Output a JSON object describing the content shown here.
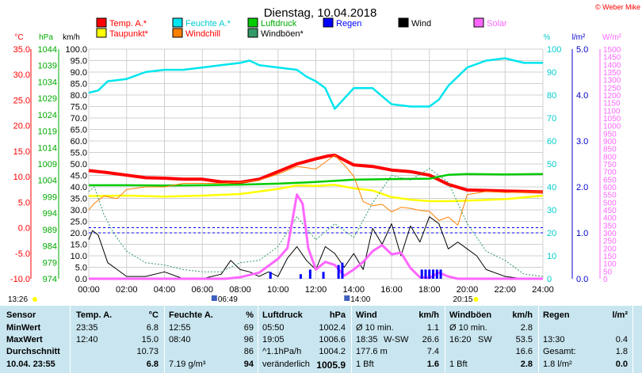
{
  "chart_data": {
    "type": "line",
    "title": "Dienstag, 10.04.2018",
    "copyright": "© Weber Mike",
    "legend": [
      {
        "label": "Temp. A.*",
        "color": "#ff0000"
      },
      {
        "label": "Feuchte A.*",
        "color": "#00e5ee"
      },
      {
        "label": "Luftdruck",
        "color": "#00cc00"
      },
      {
        "label": "Regen",
        "color": "#0000ff"
      },
      {
        "label": "Wind",
        "color": "#000000"
      },
      {
        "label": "Solar",
        "color": "#ff66ff"
      },
      {
        "label": "Taupunkt*",
        "color": "#ffff00"
      },
      {
        "label": "Windchill",
        "color": "#ff8000"
      },
      {
        "label": "Windböen*",
        "color": "#339966"
      }
    ],
    "axes": {
      "temp": {
        "label": "°C",
        "range": [
          -10,
          35
        ],
        "ticks": [
          "35.0",
          "30.0",
          "25.0",
          "20.0",
          "15.0",
          "10.0",
          "5.0",
          "0.0",
          "-5.0",
          "-10.0"
        ],
        "color": "#ff0000"
      },
      "pressure": {
        "label": "hPa",
        "range": [
          974,
          1044
        ],
        "ticks": [
          "1044",
          "1039",
          "1034",
          "1029",
          "1024",
          "1019",
          "1014",
          "1009",
          "1004",
          "999",
          "994",
          "989",
          "984",
          "979",
          "974"
        ],
        "color": "#00aa00"
      },
      "wind": {
        "label": "km/h",
        "range": [
          0,
          100
        ],
        "ticks": [
          "100.0",
          "95.0",
          "90.0",
          "85.0",
          "80.0",
          "75.0",
          "70.0",
          "65.0",
          "60.0",
          "55.0",
          "50.0",
          "45.0",
          "40.0",
          "35.0",
          "30.0",
          "25.0",
          "20.0",
          "15.0",
          "10.0",
          "5.0",
          "0.0"
        ],
        "color": "#000000"
      },
      "humidity": {
        "label": "%",
        "range": [
          0,
          100
        ],
        "ticks": [
          "100",
          "90",
          "80",
          "70",
          "60",
          "50",
          "40",
          "30",
          "20",
          "10",
          "0"
        ],
        "color": "#00cccc"
      },
      "rain": {
        "label": "l/m²",
        "range": [
          0,
          5
        ],
        "ticks": [
          "5.0",
          "4.0",
          "3.0",
          "2.0",
          "1.0",
          "0.0"
        ],
        "color": "#0000cc"
      },
      "solar": {
        "label": "W/m²",
        "range": [
          0,
          1500
        ],
        "ticks": [
          "1500",
          "1450",
          "1400",
          "1350",
          "1300",
          "1250",
          "1200",
          "1150",
          "1100",
          "1050",
          "1000",
          "950",
          "900",
          "850",
          "800",
          "750",
          "700",
          "650",
          "600",
          "550",
          "500",
          "450",
          "400",
          "350",
          "300",
          "250",
          "200",
          "150",
          "100",
          "50",
          "0"
        ],
        "color": "#ff66ff"
      },
      "x": {
        "range": [
          0,
          24
        ],
        "ticks": [
          "00:00",
          "02:00",
          "04:00",
          "06:00",
          "08:00",
          "10:00",
          "12:00",
          "14:00",
          "16:00",
          "18:00",
          "20:00",
          "22:00",
          "24:00"
        ]
      }
    },
    "series": [
      {
        "name": "Temp. A.*",
        "axis": "temp",
        "color": "#ff0000",
        "x": [
          0,
          1,
          2,
          3,
          4,
          5,
          6,
          7,
          8,
          9,
          10,
          11,
          12,
          12.7,
          13,
          14,
          15,
          16,
          17,
          18,
          19,
          20,
          21,
          22,
          23,
          24
        ],
        "values": [
          11.2,
          10.8,
          10.3,
          9.8,
          9.7,
          9.5,
          9.5,
          9.0,
          8.9,
          9.5,
          11.0,
          12.5,
          13.5,
          14.1,
          14.2,
          12.3,
          12.0,
          11.3,
          11.0,
          10.3,
          8.5,
          7.4,
          7.3,
          7.2,
          7.1,
          7.0
        ]
      },
      {
        "name": "Feuchte A.*",
        "axis": "humidity",
        "color": "#00e5ee",
        "x": [
          0,
          0.5,
          1,
          2,
          3,
          4,
          5,
          6,
          7,
          8,
          8.5,
          9,
          10,
          11,
          11.5,
          12,
          12.5,
          13,
          14,
          15,
          16,
          17,
          18,
          18.5,
          19,
          20,
          21,
          22,
          23,
          24
        ],
        "values": [
          81,
          82,
          86,
          87,
          90,
          91,
          91,
          92,
          93,
          94,
          95,
          93,
          92,
          91,
          88,
          86,
          83,
          74,
          83,
          83,
          76,
          75,
          75,
          78,
          84,
          92,
          95,
          96,
          94,
          94
        ]
      },
      {
        "name": "Luftdruck",
        "axis": "pressure",
        "color": "#00cc00",
        "x": [
          0,
          2,
          4,
          6,
          8,
          10,
          12,
          14,
          16,
          18,
          19,
          20,
          22,
          24
        ],
        "values": [
          1002.5,
          1002.5,
          1002.4,
          1002.5,
          1002.7,
          1003.0,
          1003.5,
          1004.2,
          1004.4,
          1004.5,
          1005.7,
          1005.9,
          1005.8,
          1005.9
        ]
      },
      {
        "name": "Taupunkt*",
        "axis": "temp",
        "color": "#ffff00",
        "x": [
          0,
          2,
          4,
          6,
          8,
          10,
          11,
          12,
          13,
          14,
          15,
          16,
          17,
          18,
          19,
          20,
          22,
          24
        ],
        "values": [
          6.2,
          6.3,
          6.1,
          6.3,
          6.6,
          7.6,
          8.3,
          8.2,
          8.4,
          7.7,
          7.3,
          6.0,
          5.5,
          5.2,
          5.2,
          5.3,
          5.6,
          6.3
        ]
      },
      {
        "name": "Windchill",
        "axis": "temp",
        "color": "#ff8000",
        "x": [
          0,
          0.3,
          0.8,
          1.5,
          2,
          3,
          4,
          5,
          6,
          7,
          8,
          9,
          10,
          11,
          12,
          13,
          13.6,
          14,
          14.5,
          15,
          15.5,
          16,
          16.5,
          17,
          17.5,
          18,
          18.5,
          19,
          19.5,
          20,
          21,
          22,
          24
        ],
        "values": [
          3.5,
          4.8,
          6.2,
          5.7,
          7.5,
          8.0,
          8.0,
          8.7,
          8.7,
          8.7,
          8.9,
          9.3,
          10.5,
          12.0,
          11.5,
          14.2,
          11.9,
          10.1,
          5.1,
          4.3,
          4.6,
          3.1,
          4.0,
          3.8,
          3.4,
          3.2,
          1.4,
          2.1,
          0.5,
          6.5,
          7.1,
          6.9,
          7.0
        ]
      },
      {
        "name": "Wind",
        "axis": "wind",
        "color": "#000000",
        "x": [
          0,
          0.2,
          0.5,
          1,
          1.5,
          2,
          3,
          4,
          5,
          6,
          7,
          7.5,
          8,
          8.5,
          9,
          9.5,
          10,
          10.5,
          11,
          11.5,
          12,
          12.5,
          13,
          13.5,
          14,
          14.5,
          15,
          15.5,
          16,
          16.5,
          17,
          17.5,
          18,
          18.5,
          19,
          19.5,
          20,
          20.5,
          21,
          22,
          23,
          24
        ],
        "values": [
          17,
          21,
          19,
          7,
          4,
          1,
          1,
          3,
          0,
          0,
          2,
          8,
          4,
          3,
          1,
          3,
          1,
          9,
          14,
          8,
          4,
          14,
          11,
          5,
          11,
          4,
          22,
          15,
          24,
          10,
          23,
          16,
          27,
          24,
          13,
          16,
          13,
          10,
          4,
          1,
          0,
          0
        ]
      },
      {
        "name": "Windböen*",
        "axis": "wind",
        "color": "#339966",
        "x": [
          0,
          0.3,
          0.8,
          1.3,
          2,
          3,
          4,
          5,
          6,
          7,
          8,
          9,
          10,
          11,
          12,
          13,
          14,
          15,
          16,
          17,
          18,
          19,
          20,
          21,
          22,
          23,
          24
        ],
        "values": [
          38,
          40,
          28,
          20,
          12,
          7,
          6,
          4,
          3,
          3,
          7,
          8,
          14,
          27,
          17,
          24,
          18,
          33,
          45,
          43,
          48,
          42,
          24,
          12,
          8,
          2,
          1
        ]
      },
      {
        "name": "Solar",
        "axis": "solar",
        "color": "#ff66ff",
        "x": [
          0,
          7.2,
          8,
          9,
          10,
          10.5,
          11,
          11.3,
          11.6,
          12,
          12.5,
          13,
          13.5,
          14,
          14.5,
          15,
          15.5,
          16,
          16.5,
          17,
          17.5,
          18,
          18.5,
          19,
          19.5,
          20,
          24
        ],
        "values": [
          0,
          0,
          10,
          40,
          130,
          200,
          550,
          490,
          200,
          60,
          110,
          90,
          20,
          60,
          110,
          180,
          220,
          160,
          170,
          70,
          10,
          5,
          40,
          15,
          0,
          0,
          0
        ]
      }
    ],
    "rain_marks": {
      "color": "#0000ff",
      "x": [
        9.6,
        11.2,
        11.7,
        12.4,
        13.2,
        13.4,
        17.6,
        17.8,
        18.0,
        18.2,
        18.4,
        18.6
      ],
      "values": [
        0.15,
        0.1,
        0.2,
        0.15,
        0.3,
        0.35,
        0.2,
        0.2,
        0.2,
        0.2,
        0.2,
        0.2
      ]
    },
    "reference_lines": [
      {
        "axis": "temp",
        "value": 0,
        "color": "#0000ff",
        "style": "dashed"
      },
      {
        "axis": "rain",
        "value": 1,
        "color": "#0000ff",
        "style": "dashed"
      }
    ],
    "sun": {
      "sunrise_label": "06:49",
      "noon_label": "14:00",
      "sunset_label": "20:15",
      "moon_label": "13:26"
    }
  },
  "table": {
    "headers": {
      "sensor": "Sensor",
      "temp": "Temp. A.",
      "temp_unit": "°C",
      "hum": "Feuchte A.",
      "hum_unit": "%",
      "press": "Luftdruck",
      "press_unit": "hPa",
      "wind": "Wind",
      "wind_unit": "km/h",
      "gust": "Windböen",
      "gust_unit": "km/h",
      "rain": "Regen",
      "rain_unit": "l/m²"
    },
    "rows": [
      {
        "label": "MinWert",
        "temp_t": "23:35",
        "temp_v": "6.8",
        "hum_t": "12:55",
        "hum_v": "69",
        "press_t": "05:50",
        "press_v": "1002.4",
        "wind_t": "Ø 10 min.",
        "wind_v": "1.1",
        "gust_t": "Ø 10 min.",
        "gust_v": "2.8",
        "rain_t": "",
        "rain_v": ""
      },
      {
        "label": "MaxWert",
        "temp_t": "12:40",
        "temp_v": "15.0",
        "hum_t": "08:40",
        "hum_v": "96",
        "press_t": "19:05",
        "press_v": "1006.6",
        "wind_t": "18:35",
        "wind_d": "W-SW",
        "wind_v": "26.6",
        "gust_t": "16:20",
        "gust_d": "SW",
        "gust_v": "53.5",
        "rain_t": "13:30",
        "rain_v": "0.4"
      },
      {
        "label": "Durchschnitt",
        "temp_t": "",
        "temp_v": "10.73",
        "hum_t": "",
        "hum_v": "86",
        "press_t": "^1.1hPa/h",
        "press_v": "1004.2",
        "wind_t": "177.6 m",
        "wind_v": "7.4",
        "gust_t": "",
        "gust_v": "16.6",
        "rain_t": "Gesamt:",
        "rain_v": "1.8"
      },
      {
        "label": "10.04. 23:55",
        "temp_t": "",
        "temp_v": "6.8",
        "hum_t": "7.19 g/m³",
        "hum_v": "94",
        "press_t": "veränderlich",
        "press_v": "1005.9",
        "wind_t": "1 Bft",
        "wind_v": "1.6",
        "gust_t": "1 Bft",
        "gust_v": "2.8",
        "rain_t": "1.8 l/m²",
        "rain_v": "0.0"
      }
    ]
  }
}
